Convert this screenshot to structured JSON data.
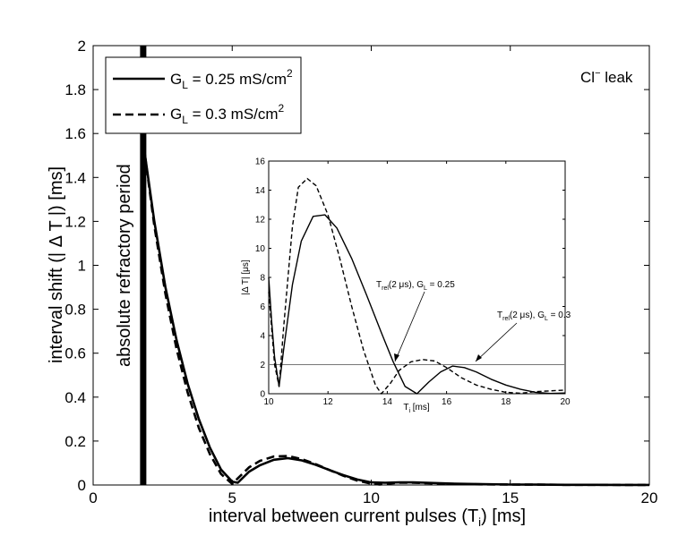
{
  "chart_data": [
    {
      "type": "line",
      "xlabel": "interval between current pulses (T",
      "xlabel_sub": "i",
      "xlabel_end": ") [ms]",
      "ylabel": "interval shift (| Δ T |) [ms]",
      "xlim": [
        0,
        20
      ],
      "ylim": [
        0,
        2
      ],
      "xticks": [
        0,
        5,
        10,
        15,
        20
      ],
      "yticks": [
        0,
        0.2,
        0.4,
        0.6,
        0.8,
        1,
        1.2,
        1.4,
        1.6,
        1.8,
        2
      ],
      "xtick_labels": [
        "0",
        "5",
        "10",
        "15",
        "20"
      ],
      "ytick_labels": [
        "0",
        "0.2",
        "0.4",
        "0.6",
        "0.8",
        "1",
        "1.2",
        "1.4",
        "1.6",
        "1.8",
        "2"
      ],
      "annotation": "Cl",
      "annotation_sup": "−",
      "annotation_end": " leak",
      "refractory_label": "absolute refractory period",
      "refractory_x": 1.8,
      "legend": [
        {
          "prefix": "G",
          "sub": "L",
          "mid": " = 0.25 mS/cm",
          "sup": "2",
          "style": "solid"
        },
        {
          "prefix": "G",
          "sub": "L",
          "mid": " = 0.3 mS/cm",
          "sup": "2",
          "style": "dashed"
        }
      ],
      "series": [
        {
          "name": "G_L = 0.25 mS/cm^2",
          "style": "solid",
          "x": [
            1.8,
            2.2,
            2.6,
            3.0,
            3.4,
            3.8,
            4.2,
            4.6,
            5.0,
            5.2,
            5.6,
            6.0,
            6.5,
            7.0,
            7.5,
            8.0,
            8.5,
            9.0,
            9.5,
            10.0,
            10.5,
            11.0,
            11.5,
            12.0,
            13.0,
            14.0,
            15.0,
            16.0,
            17.0,
            18.0,
            19.0,
            20.0
          ],
          "y": [
            1.56,
            1.2,
            0.9,
            0.66,
            0.46,
            0.3,
            0.17,
            0.07,
            0.015,
            0.01,
            0.06,
            0.09,
            0.115,
            0.122,
            0.112,
            0.092,
            0.068,
            0.045,
            0.025,
            0.012,
            0.01,
            0.012,
            0.012,
            0.01,
            0.006,
            0.004,
            0.002,
            0.0015,
            0.001,
            0.0008,
            0.0005,
            0.0004
          ]
        },
        {
          "name": "G_L = 0.3 mS/cm^2",
          "style": "dashed",
          "x": [
            1.8,
            2.2,
            2.6,
            3.0,
            3.4,
            3.8,
            4.2,
            4.6,
            5.0,
            5.2,
            5.6,
            6.0,
            6.5,
            7.0,
            7.5,
            8.0,
            8.5,
            9.0,
            9.5,
            10.0,
            10.3,
            10.6,
            11.0,
            11.5,
            12.0,
            13.0,
            14.0,
            15.0,
            16.0,
            17.0,
            18.0,
            19.0,
            20.0
          ],
          "y": [
            1.56,
            1.18,
            0.87,
            0.62,
            0.42,
            0.26,
            0.14,
            0.05,
            0.005,
            0.03,
            0.08,
            0.11,
            0.13,
            0.132,
            0.118,
            0.095,
            0.068,
            0.042,
            0.02,
            0.006,
            0.002,
            0.006,
            0.01,
            0.01,
            0.008,
            0.005,
            0.003,
            0.002,
            0.0015,
            0.001,
            0.0008,
            0.0005,
            0.0004
          ]
        }
      ]
    },
    {
      "type": "line",
      "inset": true,
      "xlabel": "T",
      "xlabel_sub": "i",
      "xlabel_end": " [ms]",
      "ylabel": "|Δ T| [μs]",
      "xlim": [
        10,
        20
      ],
      "ylim": [
        0,
        16
      ],
      "xticks": [
        10,
        12,
        14,
        16,
        18,
        20
      ],
      "yticks": [
        0,
        2,
        4,
        6,
        8,
        10,
        12,
        14,
        16
      ],
      "xtick_labels": [
        "10",
        "12",
        "14",
        "16",
        "18",
        "20"
      ],
      "ytick_labels": [
        "0",
        "2",
        "4",
        "6",
        "8",
        "10",
        "12",
        "14",
        "16"
      ],
      "threshold": 2,
      "annotations": [
        {
          "prefix": "T",
          "sub": "rel",
          "mid": "(2 μs), G",
          "sub2": "L",
          "end": " = 0.25",
          "x": 14.3,
          "y": 2
        },
        {
          "prefix": "T",
          "sub": "rel",
          "mid": "(2 μs), G",
          "sub2": "L",
          "end": " = 0.3",
          "x": 16.2,
          "y": 2
        }
      ],
      "series": [
        {
          "name": "G_L = 0.25 mS/cm^2",
          "style": "solid",
          "x": [
            10.0,
            10.1,
            10.2,
            10.35,
            10.5,
            10.8,
            11.1,
            11.5,
            11.9,
            12.3,
            12.8,
            13.3,
            13.8,
            14.2,
            14.6,
            15.0,
            15.4,
            15.8,
            16.2,
            16.6,
            17.0,
            17.5,
            18.0,
            18.5,
            19.0,
            19.5,
            20.0
          ],
          "y": [
            8.0,
            5.0,
            2.5,
            0.5,
            3.0,
            7.5,
            10.5,
            12.2,
            12.3,
            11.4,
            9.3,
            6.8,
            4.2,
            2.2,
            0.5,
            0.0,
            0.8,
            1.5,
            1.9,
            1.8,
            1.5,
            1.0,
            0.6,
            0.3,
            0.1,
            0.02,
            0.05
          ]
        },
        {
          "name": "G_L = 0.3 mS/cm^2",
          "style": "dashed",
          "x": [
            10.0,
            10.1,
            10.2,
            10.35,
            10.5,
            10.8,
            11.0,
            11.3,
            11.6,
            12.0,
            12.4,
            12.8,
            13.2,
            13.6,
            13.8,
            14.1,
            14.4,
            14.8,
            15.2,
            15.6,
            16.0,
            16.5,
            17.0,
            17.5,
            18.0,
            18.5,
            19.0,
            19.5,
            20.0
          ],
          "y": [
            7.0,
            4.5,
            2.0,
            0.5,
            4.5,
            11.5,
            14.2,
            14.8,
            14.3,
            12.3,
            9.3,
            6.0,
            3.0,
            0.6,
            0.0,
            0.7,
            1.6,
            2.2,
            2.35,
            2.25,
            1.8,
            1.1,
            0.6,
            0.3,
            0.1,
            0.03,
            0.15,
            0.2,
            0.25
          ]
        }
      ]
    }
  ]
}
